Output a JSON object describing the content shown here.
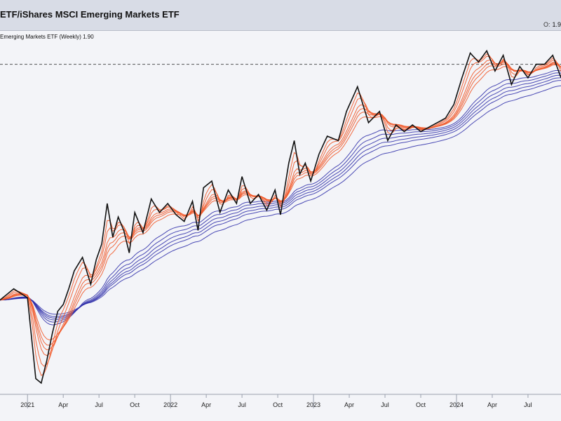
{
  "header": {
    "title": "ETF/iShares MSCI Emerging Markets ETF",
    "ohlc_key": "O:",
    "ohlc_value": "1.9"
  },
  "legend": {
    "text": "Emerging Markets ETF (Weekly) 1.90"
  },
  "colors": {
    "price": "#111111",
    "short_ma": "#f25a2a",
    "long_ma": "#2a2aa8",
    "reference_line": "#555555",
    "background": "#f3f4f8",
    "header_bg": "#d8dce6"
  },
  "chart_data": {
    "type": "line",
    "title": "",
    "xlabel": "",
    "ylabel": "",
    "ylim": [
      -0.55,
      1.05
    ],
    "x_axis": {
      "start": "2020-10-26",
      "end": "2024-09-23",
      "ticks": [
        {
          "date": "2021-01-04",
          "label": "2021",
          "major": true
        },
        {
          "date": "2021-04-05",
          "label": "Apr",
          "major": false
        },
        {
          "date": "2021-07-05",
          "label": "Jul",
          "major": false
        },
        {
          "date": "2021-10-04",
          "label": "Oct",
          "major": false
        },
        {
          "date": "2022-01-03",
          "label": "2022",
          "major": true
        },
        {
          "date": "2022-04-04",
          "label": "Apr",
          "major": false
        },
        {
          "date": "2022-07-04",
          "label": "Jul",
          "major": false
        },
        {
          "date": "2022-10-03",
          "label": "Oct",
          "major": false
        },
        {
          "date": "2023-01-02",
          "label": "2023",
          "major": true
        },
        {
          "date": "2023-04-03",
          "label": "Apr",
          "major": false
        },
        {
          "date": "2023-07-03",
          "label": "Jul",
          "major": false
        },
        {
          "date": "2023-10-02",
          "label": "Oct",
          "major": false
        },
        {
          "date": "2024-01-01",
          "label": "2024",
          "major": true
        },
        {
          "date": "2024-04-01",
          "label": "Apr",
          "major": false
        },
        {
          "date": "2024-07-01",
          "label": "Jul",
          "major": false
        }
      ]
    },
    "reference_line": 0.92,
    "series": [
      {
        "kind": "price",
        "x": [
          "2020-10-26",
          "2020-11-30",
          "2021-01-04",
          "2021-01-25",
          "2021-02-08",
          "2021-02-22",
          "2021-03-08",
          "2021-03-22",
          "2021-04-05",
          "2021-04-19",
          "2021-05-03",
          "2021-05-24",
          "2021-06-14",
          "2021-06-28",
          "2021-07-12",
          "2021-07-26",
          "2021-08-09",
          "2021-08-23",
          "2021-09-06",
          "2021-09-20",
          "2021-10-04",
          "2021-10-25",
          "2021-11-15",
          "2021-12-06",
          "2021-12-27",
          "2022-01-17",
          "2022-02-07",
          "2022-02-28",
          "2022-03-14",
          "2022-03-28",
          "2022-04-18",
          "2022-05-09",
          "2022-05-30",
          "2022-06-20",
          "2022-07-04",
          "2022-07-25",
          "2022-08-15",
          "2022-09-05",
          "2022-09-26",
          "2022-10-10",
          "2022-10-31",
          "2022-11-14",
          "2022-11-28",
          "2022-12-12",
          "2022-12-26",
          "2023-01-16",
          "2023-02-06",
          "2023-03-06",
          "2023-03-27",
          "2023-04-24",
          "2023-05-22",
          "2023-06-19",
          "2023-07-10",
          "2023-07-31",
          "2023-08-21",
          "2023-09-11",
          "2023-10-02",
          "2023-10-23",
          "2023-11-13",
          "2023-12-04",
          "2023-12-25",
          "2024-01-15",
          "2024-02-05",
          "2024-02-26",
          "2024-03-18",
          "2024-04-08",
          "2024-04-29",
          "2024-05-20",
          "2024-06-10",
          "2024-07-01",
          "2024-07-22",
          "2024-08-12",
          "2024-09-02",
          "2024-09-23"
        ],
        "y": [
          -0.13,
          -0.08,
          -0.12,
          -0.48,
          -0.5,
          -0.4,
          -0.28,
          -0.18,
          -0.15,
          -0.08,
          0.0,
          0.06,
          -0.06,
          0.05,
          0.12,
          0.3,
          0.15,
          0.24,
          0.18,
          0.08,
          0.26,
          0.17,
          0.32,
          0.26,
          0.3,
          0.25,
          0.22,
          0.31,
          0.18,
          0.37,
          0.4,
          0.26,
          0.36,
          0.3,
          0.42,
          0.3,
          0.34,
          0.27,
          0.36,
          0.25,
          0.48,
          0.58,
          0.43,
          0.48,
          0.4,
          0.52,
          0.6,
          0.58,
          0.71,
          0.82,
          0.66,
          0.71,
          0.58,
          0.65,
          0.62,
          0.65,
          0.62,
          0.64,
          0.66,
          0.68,
          0.74,
          0.86,
          0.97,
          0.93,
          0.98,
          0.89,
          0.96,
          0.83,
          0.91,
          0.86,
          0.92,
          0.92,
          0.96,
          0.86
        ]
      },
      {
        "kind": "short_ma",
        "period": 3
      },
      {
        "kind": "short_ma",
        "period": 5
      },
      {
        "kind": "short_ma",
        "period": 8
      },
      {
        "kind": "short_ma",
        "period": 10
      },
      {
        "kind": "short_ma",
        "period": 12
      },
      {
        "kind": "short_ma",
        "period": 15
      },
      {
        "kind": "long_ma",
        "period": 30
      },
      {
        "kind": "long_ma",
        "period": 35
      },
      {
        "kind": "long_ma",
        "period": 40
      },
      {
        "kind": "long_ma",
        "period": 45
      },
      {
        "kind": "long_ma",
        "period": 50
      },
      {
        "kind": "long_ma",
        "period": 60
      }
    ]
  }
}
